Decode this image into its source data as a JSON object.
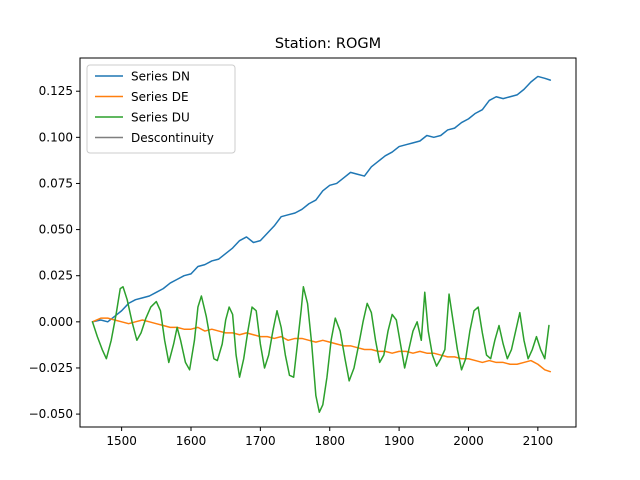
{
  "chart_data": {
    "type": "line",
    "title": "Station: ROGM",
    "xlabel": "",
    "ylabel": "",
    "xlim": [
      1440,
      2155
    ],
    "ylim": [
      -0.057,
      0.143
    ],
    "x_ticks": [
      1500,
      1600,
      1700,
      1800,
      1900,
      2000,
      2100
    ],
    "x_tick_labels": [
      "1500",
      "1600",
      "1700",
      "1800",
      "1900",
      "2000",
      "2100"
    ],
    "y_ticks": [
      -0.05,
      -0.025,
      0.0,
      0.025,
      0.05,
      0.075,
      0.1,
      0.125
    ],
    "y_tick_labels": [
      "−0.050",
      "−0.025",
      "0.000",
      "0.025",
      "0.050",
      "0.075",
      "0.100",
      "0.125"
    ],
    "grid": false,
    "legend_position": "top-left",
    "series": [
      {
        "name": "Series DN",
        "color": "#1f77b4",
        "x": [
          1458,
          1470,
          1480,
          1490,
          1500,
          1510,
          1520,
          1530,
          1540,
          1550,
          1560,
          1570,
          1580,
          1590,
          1600,
          1610,
          1620,
          1630,
          1640,
          1650,
          1660,
          1670,
          1680,
          1690,
          1700,
          1710,
          1720,
          1730,
          1740,
          1750,
          1760,
          1770,
          1780,
          1790,
          1800,
          1810,
          1820,
          1830,
          1840,
          1850,
          1860,
          1870,
          1880,
          1890,
          1900,
          1910,
          1920,
          1930,
          1940,
          1950,
          1960,
          1970,
          1980,
          1990,
          2000,
          2010,
          2020,
          2030,
          2040,
          2050,
          2060,
          2070,
          2080,
          2090,
          2100,
          2110,
          2118
        ],
        "y": [
          0.0,
          0.001,
          0.0,
          0.003,
          0.006,
          0.01,
          0.012,
          0.013,
          0.014,
          0.016,
          0.018,
          0.021,
          0.023,
          0.025,
          0.026,
          0.03,
          0.031,
          0.033,
          0.034,
          0.037,
          0.04,
          0.044,
          0.046,
          0.043,
          0.044,
          0.048,
          0.052,
          0.057,
          0.058,
          0.059,
          0.061,
          0.064,
          0.066,
          0.071,
          0.074,
          0.075,
          0.078,
          0.081,
          0.08,
          0.079,
          0.084,
          0.087,
          0.09,
          0.092,
          0.095,
          0.096,
          0.097,
          0.098,
          0.101,
          0.1,
          0.101,
          0.104,
          0.105,
          0.108,
          0.11,
          0.113,
          0.115,
          0.12,
          0.122,
          0.121,
          0.122,
          0.123,
          0.126,
          0.13,
          0.133,
          0.132,
          0.131
        ]
      },
      {
        "name": "Series DE",
        "color": "#ff7f0e",
        "x": [
          1458,
          1470,
          1480,
          1490,
          1500,
          1510,
          1520,
          1530,
          1540,
          1550,
          1560,
          1570,
          1580,
          1590,
          1600,
          1610,
          1620,
          1630,
          1640,
          1650,
          1660,
          1670,
          1680,
          1690,
          1700,
          1710,
          1720,
          1730,
          1740,
          1750,
          1760,
          1770,
          1780,
          1790,
          1800,
          1810,
          1820,
          1830,
          1840,
          1850,
          1860,
          1870,
          1880,
          1890,
          1900,
          1910,
          1920,
          1930,
          1940,
          1950,
          1960,
          1970,
          1980,
          1990,
          2000,
          2010,
          2020,
          2030,
          2040,
          2050,
          2060,
          2070,
          2080,
          2090,
          2100,
          2110,
          2118
        ],
        "y": [
          0.0,
          0.002,
          0.002,
          0.001,
          0.0,
          -0.001,
          0.0,
          0.001,
          0.0,
          -0.001,
          -0.002,
          -0.003,
          -0.003,
          -0.004,
          -0.004,
          -0.003,
          -0.005,
          -0.004,
          -0.005,
          -0.006,
          -0.006,
          -0.007,
          -0.006,
          -0.007,
          -0.008,
          -0.008,
          -0.009,
          -0.008,
          -0.01,
          -0.009,
          -0.009,
          -0.01,
          -0.011,
          -0.01,
          -0.011,
          -0.012,
          -0.013,
          -0.013,
          -0.014,
          -0.015,
          -0.015,
          -0.016,
          -0.016,
          -0.017,
          -0.016,
          -0.016,
          -0.017,
          -0.016,
          -0.017,
          -0.017,
          -0.018,
          -0.019,
          -0.019,
          -0.02,
          -0.02,
          -0.021,
          -0.022,
          -0.021,
          -0.022,
          -0.022,
          -0.023,
          -0.023,
          -0.022,
          -0.021,
          -0.023,
          -0.026,
          -0.027
        ]
      },
      {
        "name": "Series DU",
        "color": "#2ca02c",
        "x": [
          1458,
          1465,
          1472,
          1478,
          1485,
          1492,
          1498,
          1502,
          1508,
          1515,
          1522,
          1528,
          1535,
          1542,
          1550,
          1556,
          1562,
          1568,
          1575,
          1580,
          1585,
          1592,
          1598,
          1605,
          1610,
          1615,
          1622,
          1628,
          1633,
          1638,
          1645,
          1650,
          1655,
          1660,
          1665,
          1670,
          1676,
          1682,
          1688,
          1694,
          1700,
          1706,
          1712,
          1718,
          1724,
          1730,
          1736,
          1742,
          1748,
          1754,
          1759,
          1762,
          1768,
          1774,
          1780,
          1785,
          1790,
          1796,
          1802,
          1808,
          1815,
          1822,
          1828,
          1835,
          1842,
          1848,
          1854,
          1860,
          1866,
          1872,
          1878,
          1884,
          1890,
          1896,
          1902,
          1908,
          1914,
          1920,
          1926,
          1932,
          1937,
          1942,
          1948,
          1954,
          1960,
          1966,
          1972,
          1978,
          1984,
          1990,
          1996,
          2002,
          2008,
          2014,
          2020,
          2026,
          2032,
          2038,
          2044,
          2050,
          2056,
          2062,
          2068,
          2074,
          2080,
          2086,
          2092,
          2098,
          2104,
          2110,
          2116
        ],
        "y": [
          0.0,
          -0.008,
          -0.015,
          -0.02,
          -0.01,
          0.004,
          0.018,
          0.019,
          0.012,
          0.0,
          -0.01,
          -0.006,
          0.002,
          0.008,
          0.011,
          0.006,
          -0.01,
          -0.022,
          -0.012,
          -0.003,
          -0.01,
          -0.022,
          -0.026,
          -0.01,
          0.008,
          0.014,
          0.003,
          -0.01,
          -0.02,
          -0.021,
          -0.012,
          0.001,
          0.008,
          0.004,
          -0.018,
          -0.03,
          -0.02,
          -0.005,
          0.008,
          0.006,
          -0.012,
          -0.025,
          -0.018,
          -0.005,
          0.006,
          -0.003,
          -0.018,
          -0.029,
          -0.03,
          -0.01,
          0.007,
          0.019,
          0.01,
          -0.012,
          -0.04,
          -0.049,
          -0.045,
          -0.03,
          -0.01,
          0.002,
          -0.005,
          -0.02,
          -0.032,
          -0.025,
          -0.012,
          0.0,
          0.01,
          0.005,
          -0.01,
          -0.022,
          -0.018,
          -0.005,
          0.004,
          0.001,
          -0.012,
          -0.025,
          -0.015,
          -0.005,
          0.0,
          -0.01,
          0.016,
          -0.005,
          -0.018,
          -0.024,
          -0.02,
          -0.015,
          0.015,
          0.0,
          -0.015,
          -0.026,
          -0.02,
          -0.005,
          0.006,
          0.008,
          -0.006,
          -0.018,
          -0.02,
          -0.01,
          -0.002,
          -0.012,
          -0.02,
          -0.015,
          -0.005,
          0.005,
          -0.01,
          -0.02,
          -0.015,
          -0.008,
          -0.015,
          -0.02,
          -0.002
        ]
      },
      {
        "name": "Descontinuity",
        "color": "#7f7f7f",
        "x": [],
        "y": []
      }
    ]
  }
}
